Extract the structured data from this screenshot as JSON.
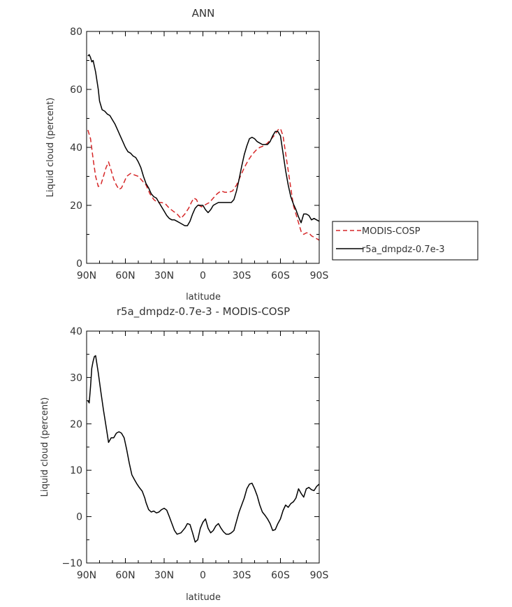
{
  "chart_data": [
    {
      "type": "line",
      "title": "ANN",
      "xlabel": "latitude",
      "ylabel": "Liquid cloud (percent)",
      "xlim": [
        90,
        -90
      ],
      "ylim": [
        0,
        80
      ],
      "xticks": [
        {
          "v": 90,
          "label": "90N"
        },
        {
          "v": 60,
          "label": "60N"
        },
        {
          "v": 30,
          "label": "30N"
        },
        {
          "v": 0,
          "label": "0"
        },
        {
          "v": -30,
          "label": "30S"
        },
        {
          "v": -60,
          "label": "60S"
        },
        {
          "v": -90,
          "label": "90S"
        }
      ],
      "yticks": [
        0,
        20,
        40,
        60,
        80
      ],
      "legend": "right",
      "series": [
        {
          "name": "MODIS-COSP",
          "color": "#d62728",
          "dash": "dashed",
          "x": [
            89,
            87,
            85,
            83,
            81,
            79,
            77,
            75,
            73,
            71,
            69,
            67,
            65,
            63,
            61,
            59,
            56,
            53,
            50,
            47,
            44,
            41,
            38,
            35,
            32,
            29,
            26,
            23,
            20,
            17,
            14,
            11,
            9,
            7,
            5,
            3,
            1,
            -1,
            -3,
            -5,
            -8,
            -11,
            -14,
            -17,
            -20,
            -23,
            -26,
            -29,
            -32,
            -35,
            -38,
            -41,
            -44,
            -47,
            -50,
            -53,
            -56,
            -58,
            -60,
            -62,
            -64,
            -66,
            -68,
            -70,
            -72,
            -74,
            -76,
            -78,
            -80,
            -82,
            -84,
            -86,
            -88,
            -90
          ],
          "y": [
            46,
            43,
            36,
            30,
            26.5,
            27,
            30,
            33,
            35,
            32,
            29,
            27,
            25.5,
            26,
            28,
            30,
            31,
            30.5,
            30,
            28.5,
            27,
            24,
            22,
            21,
            21,
            20.5,
            19,
            18,
            17,
            15.5,
            17,
            19,
            21,
            22.5,
            22,
            20,
            19.5,
            20,
            20.5,
            21,
            22.5,
            24,
            25,
            24.5,
            24.5,
            25,
            27,
            30,
            33,
            35.5,
            37.5,
            39,
            40,
            40.5,
            41.5,
            43,
            44.5,
            46,
            46.5,
            44,
            38,
            32,
            26,
            20,
            17,
            14,
            11,
            10,
            10.5,
            10.5,
            9.5,
            9,
            8.5,
            8
          ]
        },
        {
          "name": "r5a_dmpdz-0.7e-3",
          "color": "#000000",
          "dash": "solid",
          "x": [
            89,
            88,
            87,
            86,
            85,
            84,
            83,
            82,
            81,
            80,
            78,
            76,
            74,
            72,
            70,
            68,
            66,
            64,
            62,
            60,
            58,
            56,
            54,
            52,
            50,
            48,
            46,
            44,
            42,
            40,
            38,
            36,
            34,
            32,
            30,
            28,
            26,
            24,
            22,
            20,
            18,
            16,
            14,
            12,
            10,
            8,
            6,
            4,
            2,
            0,
            -2,
            -4,
            -6,
            -8,
            -10,
            -12,
            -14,
            -16,
            -18,
            -20,
            -22,
            -24,
            -26,
            -28,
            -30,
            -32,
            -34,
            -36,
            -38,
            -40,
            -42,
            -44,
            -46,
            -48,
            -50,
            -52,
            -54,
            -56,
            -58,
            -60,
            -62,
            -64,
            -66,
            -68,
            -70,
            -72,
            -74,
            -76,
            -78,
            -80,
            -82,
            -84,
            -86,
            -88,
            -90
          ],
          "y": [
            71.5,
            72,
            71,
            69.5,
            70,
            68,
            66,
            63,
            60,
            56,
            53,
            52.5,
            51.5,
            51,
            49.5,
            48,
            46,
            44,
            42,
            40,
            38.5,
            38,
            37,
            36.5,
            35,
            33,
            30,
            27.5,
            26,
            24,
            23,
            22.5,
            21,
            19.5,
            18,
            16.5,
            15.5,
            15,
            15,
            14.5,
            14,
            13.5,
            13,
            13,
            14.5,
            17,
            19,
            20,
            20,
            20,
            18.5,
            17.5,
            18.5,
            20,
            20.5,
            21,
            21,
            21,
            21,
            21,
            21,
            22,
            25,
            29,
            33.5,
            37.5,
            40.5,
            43,
            43.5,
            43,
            42,
            41.5,
            41,
            41,
            41,
            42,
            44,
            45.5,
            45.5,
            44,
            38,
            32,
            27,
            23,
            20.5,
            18.5,
            16,
            14,
            17,
            17,
            16.5,
            15,
            15.5,
            15,
            14.5
          ]
        }
      ]
    },
    {
      "type": "line",
      "title": "r5a_dmpdz-0.7e-3 - MODIS-COSP",
      "xlabel": "latitude",
      "ylabel": "Liquid cloud (percent)",
      "xlim": [
        90,
        -90
      ],
      "ylim": [
        -10,
        40
      ],
      "xticks": [
        {
          "v": 90,
          "label": "90N"
        },
        {
          "v": 60,
          "label": "60N"
        },
        {
          "v": 30,
          "label": "30N"
        },
        {
          "v": 0,
          "label": "0"
        },
        {
          "v": -30,
          "label": "30S"
        },
        {
          "v": -60,
          "label": "60S"
        },
        {
          "v": -90,
          "label": "90S"
        }
      ],
      "yticks": [
        -10,
        0,
        10,
        20,
        30,
        40
      ],
      "series": [
        {
          "color": "#000000",
          "dash": "solid",
          "x": [
            89,
            88,
            87,
            86,
            85,
            84,
            83,
            81,
            79,
            77,
            75,
            73,
            71,
            69,
            67,
            65,
            63,
            61,
            59,
            57,
            55,
            53,
            51,
            49,
            47,
            45,
            44,
            42,
            40,
            38,
            36,
            34,
            32,
            30,
            28,
            26,
            24,
            22,
            20,
            17,
            14,
            12,
            10,
            8,
            6,
            4,
            2,
            0,
            -2,
            -4,
            -6,
            -8,
            -10,
            -12,
            -14,
            -16,
            -18,
            -20,
            -22,
            -24,
            -26,
            -28,
            -30,
            -32,
            -34,
            -36,
            -38,
            -40,
            -42,
            -44,
            -46,
            -48,
            -50,
            -52,
            -54,
            -56,
            -58,
            -60,
            -62,
            -64,
            -66,
            -68,
            -70,
            -72,
            -74,
            -76,
            -78,
            -80,
            -82,
            -84,
            -86,
            -88,
            -90
          ],
          "y": [
            25,
            24.5,
            28,
            32,
            33.5,
            34.5,
            34.7,
            31,
            27,
            23,
            19.5,
            16,
            17,
            17,
            18,
            18.3,
            18,
            17,
            14.5,
            11.5,
            9,
            8,
            7,
            6.2,
            5.5,
            4,
            3,
            1.5,
            1,
            1.2,
            0.8,
            1,
            1.5,
            1.8,
            1.4,
            0,
            -1.5,
            -3,
            -3.8,
            -3.5,
            -2.5,
            -1.5,
            -1.7,
            -3.5,
            -5.5,
            -5,
            -2.5,
            -1.2,
            -0.5,
            -2.5,
            -3.5,
            -3,
            -2,
            -1.5,
            -2.5,
            -3.3,
            -3.8,
            -3.8,
            -3.5,
            -3,
            -1,
            1,
            2.5,
            4,
            6,
            7,
            7.2,
            6,
            4.5,
            2.5,
            1,
            0.3,
            -0.5,
            -1.5,
            -3,
            -2.8,
            -1.5,
            -0.5,
            1.3,
            2.5,
            2,
            2.8,
            3.2,
            4,
            6,
            5,
            4.2,
            6,
            6.3,
            5.8,
            5.6,
            6.5,
            7
          ]
        }
      ]
    }
  ]
}
